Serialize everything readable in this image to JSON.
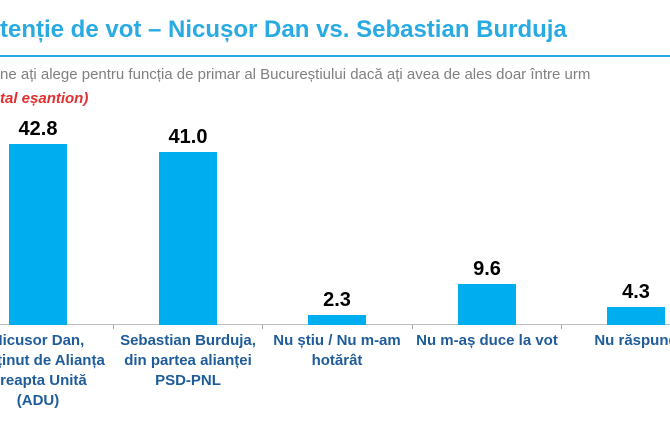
{
  "header": {
    "title": "tenție de vot – Nicușor Dan vs. Sebastian Burduja",
    "title_color": "#29ABE2",
    "divider_color": "#29ABE2",
    "subtitle": "ne ați alege pentru funcția de primar al Bucureștiului dacă ați avea de ales doar între urm",
    "subtitle_color": "#808080",
    "note": "tal eșantion)",
    "note_color": "#E03131"
  },
  "chart_data": {
    "type": "bar",
    "title": "tenție de vot – Nicușor Dan vs. Sebastian Burduja",
    "xlabel": "",
    "ylabel": "",
    "unit": "percent of sample",
    "ylim": [
      0,
      45
    ],
    "grid": false,
    "legend": false,
    "bar_color": "#00AEEF",
    "value_label_color": "#000000",
    "category_label_color": "#1F5C99",
    "axis_color": "#BFBFBF",
    "tick_color": "#A6A6A6",
    "categories": [
      {
        "label": "Nicusor Dan, susținut de Alianța Dreapta Unită (ADU)",
        "lines": [
          "Nicusor Dan,",
          "susținut de Alianța",
          "Dreapta Unită",
          "(ADU)"
        ],
        "value": 42.8,
        "value_label": "42.8"
      },
      {
        "label": "Sebastian Burduja, din partea alianței PSD-PNL",
        "lines": [
          "Sebastian Burduja,",
          "din partea alianței",
          "PSD-PNL"
        ],
        "value": 41.0,
        "value_label": "41.0"
      },
      {
        "label": "Nu știu / Nu m-am hotărât",
        "lines": [
          "Nu știu / Nu m-am",
          "hotărât"
        ],
        "value": 2.3,
        "value_label": "2.3"
      },
      {
        "label": "Nu m-aș duce la vot",
        "lines": [
          "Nu m-aș duce la vot"
        ],
        "value": 9.6,
        "value_label": "9.6"
      },
      {
        "label": "Nu răspund",
        "lines": [
          "Nu răspund"
        ],
        "value": 4.3,
        "value_label": "4.3"
      }
    ]
  }
}
